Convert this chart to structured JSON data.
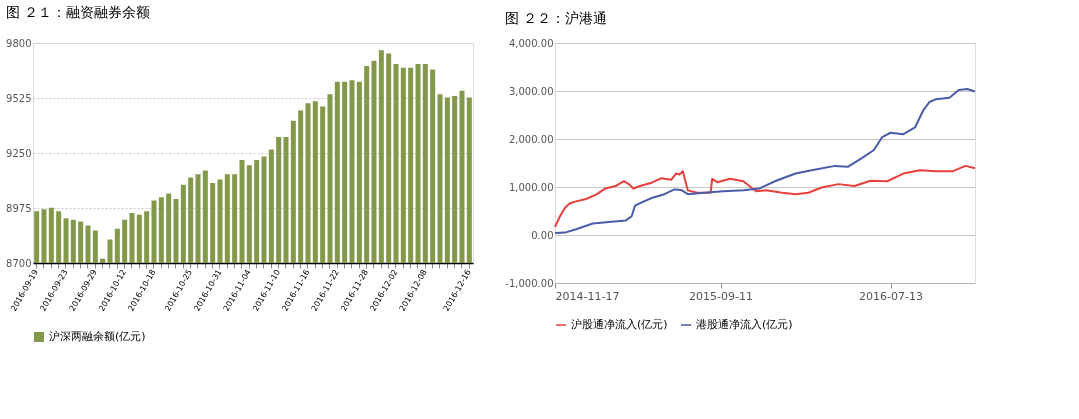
{
  "chart_data": [
    {
      "type": "bar",
      "title": "图 ２１：融资融券余额",
      "categories": [
        "2016-09-19",
        null,
        null,
        null,
        "2016-09-23",
        null,
        null,
        null,
        "2016-09-29",
        null,
        null,
        null,
        "2016-10-12",
        null,
        null,
        null,
        "2016-10-18",
        null,
        null,
        null,
        null,
        "2016-10-25",
        null,
        null,
        null,
        "2016-10-31",
        null,
        null,
        null,
        "2016-11-04",
        null,
        null,
        null,
        "2016-11-10",
        null,
        null,
        null,
        "2016-11-16",
        null,
        null,
        null,
        "2016-11-22",
        null,
        null,
        null,
        "2016-11-28",
        null,
        null,
        null,
        "2016-12-02",
        null,
        null,
        null,
        "2016-12-08",
        null,
        null,
        null,
        null,
        null,
        "2016-12-16"
      ],
      "series": [
        {
          "name": "沪深两融余额(亿元)",
          "color": "#83994a",
          "values": [
            8959,
            8969,
            8976,
            8959,
            8924,
            8916,
            8907,
            8888,
            8862,
            8721,
            8817,
            8871,
            8916,
            8950,
            8941,
            8959,
            9012,
            9029,
            9048,
            9020,
            9091,
            9127,
            9144,
            9163,
            9100,
            9117,
            9144,
            9144,
            9215,
            9189,
            9215,
            9232,
            9268,
            9330,
            9330,
            9411,
            9463,
            9499,
            9509,
            9482,
            9544,
            9606,
            9606,
            9614,
            9606,
            9685,
            9711,
            9764,
            9747,
            9695,
            9676,
            9676,
            9695,
            9695,
            9668,
            9544,
            9527,
            9535,
            9561,
            9527
          ]
        }
      ],
      "ylim": [
        8700,
        9800
      ],
      "yticks": [
        8700,
        8975,
        9250,
        9525,
        9800
      ],
      "grid": "y",
      "legend": "bottom"
    },
    {
      "type": "line",
      "title": "图 ２２：沪港通",
      "series": [
        {
          "name": "沪股通净流入(亿元)",
          "color": "#e8403c",
          "x": [
            "2014-11-17",
            "2014-11-26",
            "2014-12-05",
            "2014-12-14",
            "2014-12-25",
            "2015-01-12",
            "2015-01-30",
            "2015-02-16",
            "2015-03-06",
            "2015-03-21",
            "2015-03-30",
            "2015-04-07",
            "2015-04-22",
            "2015-05-10",
            "2015-05-27",
            "2015-06-14",
            "2015-06-23",
            "2015-06-29",
            "2015-07-05",
            "2015-07-14",
            "2015-07-31",
            "2015-08-24",
            "2015-08-27",
            "2015-09-05",
            "2015-09-28",
            "2015-10-22",
            "2015-11-02",
            "2015-11-14",
            "2015-12-02",
            "2015-12-31",
            "2016-01-24",
            "2016-02-16",
            "2016-03-11",
            "2016-04-10",
            "2016-05-09",
            "2016-06-07",
            "2016-07-07",
            "2016-08-05",
            "2016-09-04",
            "2016-10-03",
            "2016-11-02",
            "2016-11-25",
            "2016-12-12"
          ],
          "values": [
            170,
            390,
            570,
            660,
            700,
            750,
            840,
            970,
            1020,
            1120,
            1060,
            970,
            1030,
            1090,
            1180,
            1150,
            1280,
            1260,
            1330,
            930,
            880,
            880,
            1170,
            1100,
            1170,
            1120,
            1020,
            910,
            930,
            880,
            850,
            880,
            990,
            1060,
            1020,
            1130,
            1120,
            1280,
            1350,
            1330,
            1330,
            1440,
            1390
          ]
        },
        {
          "name": "港股通净流入(亿元)",
          "color": "#4a5ba8",
          "x": [
            "2014-11-17",
            "2014-12-05",
            "2014-12-25",
            "2015-01-24",
            "2015-02-22",
            "2015-03-24",
            "2015-04-04",
            "2015-04-10",
            "2015-04-22",
            "2015-05-10",
            "2015-06-02",
            "2015-06-20",
            "2015-07-02",
            "2015-07-14",
            "2015-08-12",
            "2015-09-16",
            "2015-10-22",
            "2015-11-20",
            "2015-12-20",
            "2016-01-24",
            "2016-02-22",
            "2016-04-04",
            "2016-04-27",
            "2016-05-21",
            "2016-06-13",
            "2016-06-28",
            "2016-07-13",
            "2016-08-05",
            "2016-08-26",
            "2016-09-10",
            "2016-09-21",
            "2016-10-03",
            "2016-10-27",
            "2016-11-13",
            "2016-11-28",
            "2016-12-12"
          ],
          "values": [
            40,
            50,
            120,
            240,
            270,
            300,
            390,
            610,
            680,
            770,
            850,
            950,
            940,
            850,
            880,
            910,
            930,
            970,
            1130,
            1280,
            1350,
            1440,
            1420,
            1590,
            1770,
            2040,
            2130,
            2100,
            2240,
            2600,
            2770,
            2830,
            2860,
            3020,
            3040,
            2990
          ]
        }
      ],
      "xlim": [
        "2014-11-17",
        "2016-12-12"
      ],
      "xticks": [
        "2014-11-17",
        "2015-09-11",
        "2016-07-13"
      ],
      "ylim": [
        -1000,
        4000
      ],
      "yticks": [
        {
          "value": -1000,
          "label": "-1,000.00"
        },
        {
          "value": 0,
          "label": "0.00"
        },
        {
          "value": 1000,
          "label": "1,000.00"
        },
        {
          "value": 2000,
          "label": "2,000.00"
        },
        {
          "value": 3000,
          "label": "3,000.00"
        },
        {
          "value": 4000,
          "label": "4,000.00"
        }
      ],
      "grid": "y",
      "legend": "bottom",
      "line_style": "solid",
      "marker": "none"
    }
  ]
}
